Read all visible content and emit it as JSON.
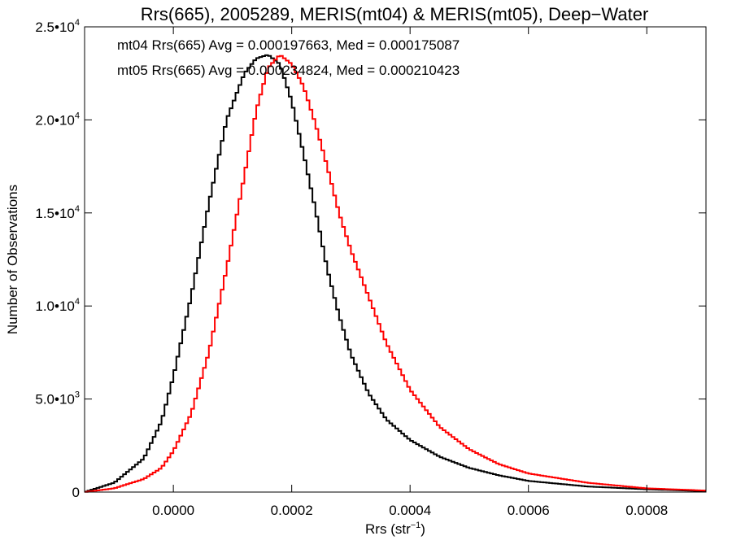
{
  "chart_data": {
    "type": "line",
    "title": "Rrs(665), 2005289, MERIS(mt04) & MERIS(mt05), Deep−Water",
    "xlabel": "Rrs (str",
    "xlabel_sup": "−1",
    "xlabel_end": ")",
    "ylabel": "Number of Observations",
    "xlim": [
      -0.00015,
      0.0009
    ],
    "ylim": [
      0,
      25000
    ],
    "x_ticks": [
      {
        "value": 0.0,
        "label": "0.0000"
      },
      {
        "value": 0.0002,
        "label": "0.0002"
      },
      {
        "value": 0.0004,
        "label": "0.0004"
      },
      {
        "value": 0.0006,
        "label": "0.0006"
      },
      {
        "value": 0.0008,
        "label": "0.0008"
      }
    ],
    "y_ticks": [
      {
        "value": 0,
        "mant": "0",
        "exp": ""
      },
      {
        "value": 5000,
        "mant": "5.0•10",
        "exp": "3"
      },
      {
        "value": 10000,
        "mant": "1.0•10",
        "exp": "4"
      },
      {
        "value": 15000,
        "mant": "1.5•10",
        "exp": "4"
      },
      {
        "value": 20000,
        "mant": "2.0•10",
        "exp": "4"
      },
      {
        "value": 25000,
        "mant": "2.5•10",
        "exp": "4"
      }
    ],
    "bin_width": 5e-06,
    "series": [
      {
        "annotation": "mt04 Rrs(665) Avg = 0.000197663, Med = 0.000175087",
        "color": "#000000",
        "x": [
          -0.00015,
          -0.0001,
          -5e-05,
          -2e-05,
          0.0,
          3e-05,
          6e-05,
          9e-05,
          0.00012,
          0.00014,
          0.00016,
          0.00018,
          0.0002,
          0.00022,
          0.00024,
          0.00026,
          0.00028,
          0.0003,
          0.00033,
          0.00036,
          0.0004,
          0.00045,
          0.0005,
          0.00055,
          0.0006,
          0.0007,
          0.0008,
          0.0009
        ],
        "y": [
          0,
          500,
          1800,
          3800,
          6200,
          10500,
          15500,
          20000,
          22500,
          23300,
          23500,
          23000,
          21000,
          18200,
          15200,
          12000,
          9500,
          7400,
          5300,
          3900,
          2800,
          1900,
          1300,
          900,
          600,
          300,
          150,
          50
        ]
      },
      {
        "annotation": "mt05 Rrs(665) Avg = 0.000234824, Med = 0.000210423",
        "color": "#ff0000",
        "x": [
          -0.00015,
          -0.0001,
          -5e-05,
          -2e-05,
          0.0,
          3e-05,
          6e-05,
          9e-05,
          0.00012,
          0.00014,
          0.00016,
          0.00018,
          0.0002,
          0.00022,
          0.00024,
          0.00026,
          0.00028,
          0.0003,
          0.00033,
          0.00036,
          0.0004,
          0.00045,
          0.0005,
          0.00055,
          0.0006,
          0.0007,
          0.0008,
          0.0009
        ],
        "y": [
          0,
          200,
          700,
          1300,
          2200,
          4200,
          7500,
          12000,
          17000,
          20500,
          22800,
          23500,
          23000,
          21800,
          19800,
          17500,
          15000,
          13000,
          10500,
          8000,
          5500,
          3500,
          2300,
          1500,
          1000,
          500,
          200,
          80
        ]
      }
    ],
    "grid": false,
    "legend": "top-left"
  }
}
